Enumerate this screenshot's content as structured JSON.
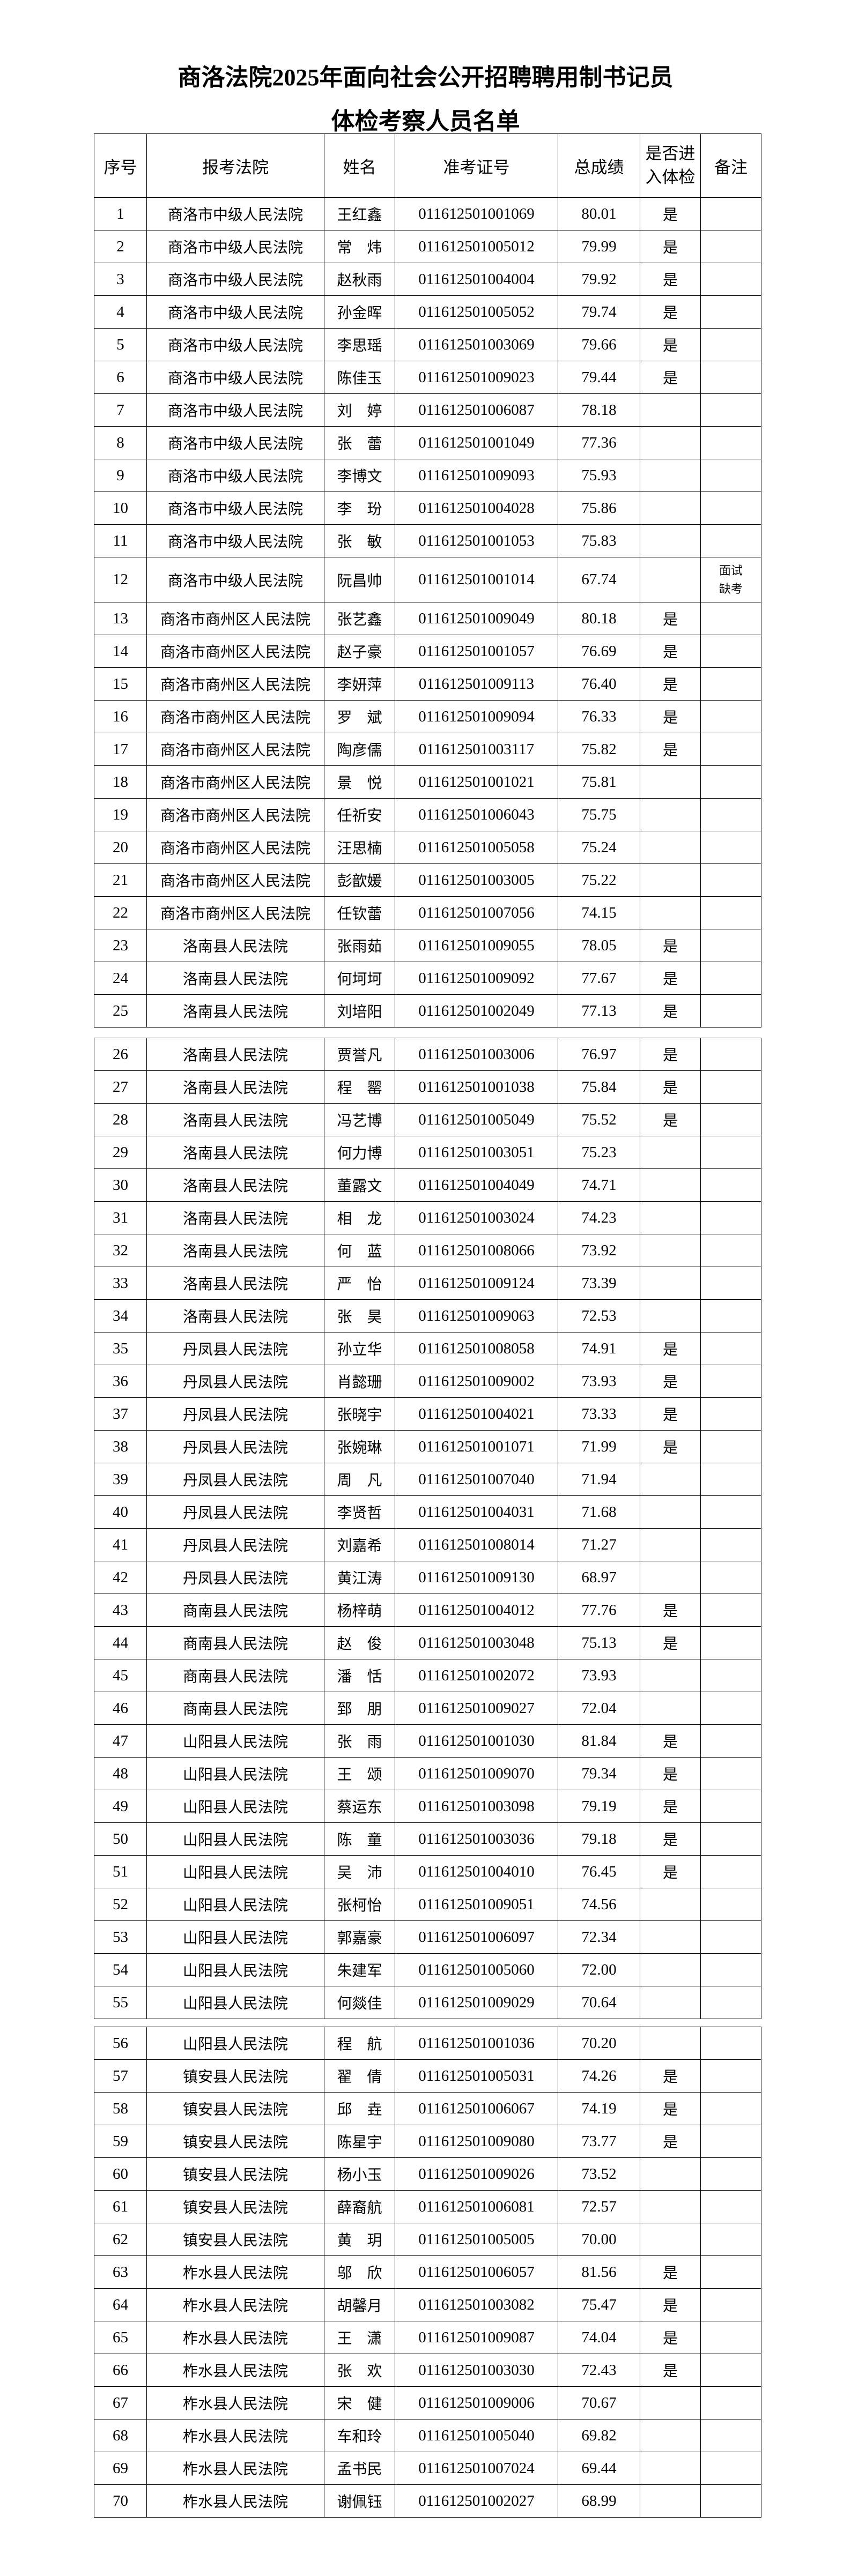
{
  "title_line1": "商洛法院2025年面向社会公开招聘聘用制书记员",
  "title_line2": "体检考察人员名单",
  "headers": {
    "seq": "序号",
    "court": "报考法院",
    "name": "姓名",
    "exam_id": "准考证号",
    "score": "总成绩",
    "physical_line1": "是否进",
    "physical_line2": "入体检",
    "remark": "备注"
  },
  "rows": [
    [
      "1",
      "商洛市中级人民法院",
      "王红鑫",
      "011612501001069",
      "80.01",
      "是",
      ""
    ],
    [
      "2",
      "商洛市中级人民法院",
      "常　炜",
      "011612501005012",
      "79.99",
      "是",
      ""
    ],
    [
      "3",
      "商洛市中级人民法院",
      "赵秋雨",
      "011612501004004",
      "79.92",
      "是",
      ""
    ],
    [
      "4",
      "商洛市中级人民法院",
      "孙金晖",
      "011612501005052",
      "79.74",
      "是",
      ""
    ],
    [
      "5",
      "商洛市中级人民法院",
      "李思瑶",
      "011612501003069",
      "79.66",
      "是",
      ""
    ],
    [
      "6",
      "商洛市中级人民法院",
      "陈佳玉",
      "011612501009023",
      "79.44",
      "是",
      ""
    ],
    [
      "7",
      "商洛市中级人民法院",
      "刘　婷",
      "011612501006087",
      "78.18",
      "",
      ""
    ],
    [
      "8",
      "商洛市中级人民法院",
      "张　蕾",
      "011612501001049",
      "77.36",
      "",
      ""
    ],
    [
      "9",
      "商洛市中级人民法院",
      "李博文",
      "011612501009093",
      "75.93",
      "",
      ""
    ],
    [
      "10",
      "商洛市中级人民法院",
      "李　玢",
      "011612501004028",
      "75.86",
      "",
      ""
    ],
    [
      "11",
      "商洛市中级人民法院",
      "张　敏",
      "011612501001053",
      "75.83",
      "",
      ""
    ],
    [
      "12",
      "商洛市中级人民法院",
      "阮昌帅",
      "011612501001014",
      "67.74",
      "",
      "面试缺考"
    ],
    [
      "13",
      "商洛市商州区人民法院",
      "张艺鑫",
      "011612501009049",
      "80.18",
      "是",
      ""
    ],
    [
      "14",
      "商洛市商州区人民法院",
      "赵子豪",
      "011612501001057",
      "76.69",
      "是",
      ""
    ],
    [
      "15",
      "商洛市商州区人民法院",
      "李妍萍",
      "011612501009113",
      "76.40",
      "是",
      ""
    ],
    [
      "16",
      "商洛市商州区人民法院",
      "罗　斌",
      "011612501009094",
      "76.33",
      "是",
      ""
    ],
    [
      "17",
      "商洛市商州区人民法院",
      "陶彦儒",
      "011612501003117",
      "75.82",
      "是",
      ""
    ],
    [
      "18",
      "商洛市商州区人民法院",
      "景　悦",
      "011612501001021",
      "75.81",
      "",
      ""
    ],
    [
      "19",
      "商洛市商州区人民法院",
      "任祈安",
      "011612501006043",
      "75.75",
      "",
      ""
    ],
    [
      "20",
      "商洛市商州区人民法院",
      "汪思楠",
      "011612501005058",
      "75.24",
      "",
      ""
    ],
    [
      "21",
      "商洛市商州区人民法院",
      "彭歆媛",
      "011612501003005",
      "75.22",
      "",
      ""
    ],
    [
      "22",
      "商洛市商州区人民法院",
      "任钦蕾",
      "011612501007056",
      "74.15",
      "",
      ""
    ],
    [
      "23",
      "洛南县人民法院",
      "张雨茹",
      "011612501009055",
      "78.05",
      "是",
      ""
    ],
    [
      "24",
      "洛南县人民法院",
      "何坷坷",
      "011612501009092",
      "77.67",
      "是",
      ""
    ],
    [
      "25",
      "洛南县人民法院",
      "刘培阳",
      "011612501002049",
      "77.13",
      "是",
      ""
    ],
    [
      "26",
      "洛南县人民法院",
      "贾誉凡",
      "011612501003006",
      "76.97",
      "是",
      ""
    ],
    [
      "27",
      "洛南县人民法院",
      "程　罂",
      "011612501001038",
      "75.84",
      "是",
      ""
    ],
    [
      "28",
      "洛南县人民法院",
      "冯艺博",
      "011612501005049",
      "75.52",
      "是",
      ""
    ],
    [
      "29",
      "洛南县人民法院",
      "何力博",
      "011612501003051",
      "75.23",
      "",
      ""
    ],
    [
      "30",
      "洛南县人民法院",
      "董露文",
      "011612501004049",
      "74.71",
      "",
      ""
    ],
    [
      "31",
      "洛南县人民法院",
      "相　龙",
      "011612501003024",
      "74.23",
      "",
      ""
    ],
    [
      "32",
      "洛南县人民法院",
      "何　蓝",
      "011612501008066",
      "73.92",
      "",
      ""
    ],
    [
      "33",
      "洛南县人民法院",
      "严　怡",
      "011612501009124",
      "73.39",
      "",
      ""
    ],
    [
      "34",
      "洛南县人民法院",
      "张　昊",
      "011612501009063",
      "72.53",
      "",
      ""
    ],
    [
      "35",
      "丹凤县人民法院",
      "孙立华",
      "011612501008058",
      "74.91",
      "是",
      ""
    ],
    [
      "36",
      "丹凤县人民法院",
      "肖懿珊",
      "011612501009002",
      "73.93",
      "是",
      ""
    ],
    [
      "37",
      "丹凤县人民法院",
      "张晓宇",
      "011612501004021",
      "73.33",
      "是",
      ""
    ],
    [
      "38",
      "丹凤县人民法院",
      "张婉琳",
      "011612501001071",
      "71.99",
      "是",
      ""
    ],
    [
      "39",
      "丹凤县人民法院",
      "周　凡",
      "011612501007040",
      "71.94",
      "",
      ""
    ],
    [
      "40",
      "丹凤县人民法院",
      "李贤哲",
      "011612501004031",
      "71.68",
      "",
      ""
    ],
    [
      "41",
      "丹凤县人民法院",
      "刘嘉希",
      "011612501008014",
      "71.27",
      "",
      ""
    ],
    [
      "42",
      "丹凤县人民法院",
      "黄江涛",
      "011612501009130",
      "68.97",
      "",
      ""
    ],
    [
      "43",
      "商南县人民法院",
      "杨梓萌",
      "011612501004012",
      "77.76",
      "是",
      ""
    ],
    [
      "44",
      "商南县人民法院",
      "赵　俊",
      "011612501003048",
      "75.13",
      "是",
      ""
    ],
    [
      "45",
      "商南县人民法院",
      "潘　恬",
      "011612501002072",
      "73.93",
      "",
      ""
    ],
    [
      "46",
      "商南县人民法院",
      "郅　朋",
      "011612501009027",
      "72.04",
      "",
      ""
    ],
    [
      "47",
      "山阳县人民法院",
      "张　雨",
      "011612501001030",
      "81.84",
      "是",
      ""
    ],
    [
      "48",
      "山阳县人民法院",
      "王　颂",
      "011612501009070",
      "79.34",
      "是",
      ""
    ],
    [
      "49",
      "山阳县人民法院",
      "蔡运东",
      "011612501003098",
      "79.19",
      "是",
      ""
    ],
    [
      "50",
      "山阳县人民法院",
      "陈　童",
      "011612501003036",
      "79.18",
      "是",
      ""
    ],
    [
      "51",
      "山阳县人民法院",
      "吴　沛",
      "011612501004010",
      "76.45",
      "是",
      ""
    ],
    [
      "52",
      "山阳县人民法院",
      "张柯怡",
      "011612501009051",
      "74.56",
      "",
      ""
    ],
    [
      "53",
      "山阳县人民法院",
      "郭嘉豪",
      "011612501006097",
      "72.34",
      "",
      ""
    ],
    [
      "54",
      "山阳县人民法院",
      "朱建军",
      "011612501005060",
      "72.00",
      "",
      ""
    ],
    [
      "55",
      "山阳县人民法院",
      "何燚佳",
      "011612501009029",
      "70.64",
      "",
      ""
    ],
    [
      "56",
      "山阳县人民法院",
      "程　航",
      "011612501001036",
      "70.20",
      "",
      ""
    ],
    [
      "57",
      "镇安县人民法院",
      "翟　倩",
      "011612501005031",
      "74.26",
      "是",
      ""
    ],
    [
      "58",
      "镇安县人民法院",
      "邱　垚",
      "011612501006067",
      "74.19",
      "是",
      ""
    ],
    [
      "59",
      "镇安县人民法院",
      "陈星宇",
      "011612501009080",
      "73.77",
      "是",
      ""
    ],
    [
      "60",
      "镇安县人民法院",
      "杨小玉",
      "011612501009026",
      "73.52",
      "",
      ""
    ],
    [
      "61",
      "镇安县人民法院",
      "薛裔航",
      "011612501006081",
      "72.57",
      "",
      ""
    ],
    [
      "62",
      "镇安县人民法院",
      "黄　玥",
      "011612501005005",
      "70.00",
      "",
      ""
    ],
    [
      "63",
      "柞水县人民法院",
      "邬　欣",
      "011612501006057",
      "81.56",
      "是",
      ""
    ],
    [
      "64",
      "柞水县人民法院",
      "胡馨月",
      "011612501003082",
      "75.47",
      "是",
      ""
    ],
    [
      "65",
      "柞水县人民法院",
      "王　潇",
      "011612501009087",
      "74.04",
      "是",
      ""
    ],
    [
      "66",
      "柞水县人民法院",
      "张　欢",
      "011612501003030",
      "72.43",
      "是",
      ""
    ],
    [
      "67",
      "柞水县人民法院",
      "宋　健",
      "011612501009006",
      "70.67",
      "",
      ""
    ],
    [
      "68",
      "柞水县人民法院",
      "车和玲",
      "011612501005040",
      "69.82",
      "",
      ""
    ],
    [
      "69",
      "柞水县人民法院",
      "孟书民",
      "011612501007024",
      "69.44",
      "",
      ""
    ],
    [
      "70",
      "柞水县人民法院",
      "谢佩钰",
      "011612501002027",
      "68.99",
      "",
      ""
    ]
  ]
}
